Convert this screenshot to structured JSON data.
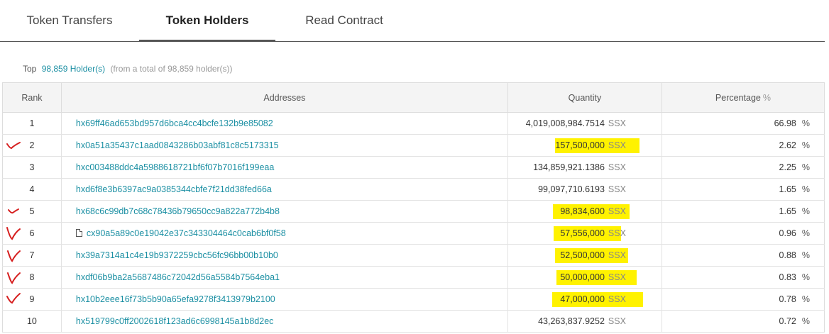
{
  "tabs": [
    {
      "label": "Token Transfers"
    },
    {
      "label": "Token Holders"
    },
    {
      "label": "Read Contract"
    }
  ],
  "summary": {
    "prefix": "Top",
    "count": "98,859 Holder(s)",
    "note": "(from a total of 98,859 holder(s))"
  },
  "table": {
    "headers": {
      "rank": "Rank",
      "addresses": "Addresses",
      "quantity": "Quantity",
      "percentage": "Percentage",
      "percentage_unit": "%"
    },
    "rows": [
      {
        "rank": "1",
        "address": "hx69ff46ad653bd957d6bca4cc4bcfe132b9e85082",
        "quantity": "4,019,008,984.7514",
        "symbol": "SSX",
        "percentage": "66.98",
        "pct_sym": "%"
      },
      {
        "rank": "2",
        "address": "hx0a51a35437c1aad0843286b03abf81c8c5173315",
        "quantity": "157,500,000",
        "symbol": "SSX",
        "percentage": "2.62",
        "pct_sym": "%"
      },
      {
        "rank": "3",
        "address": "hxc003488ddc4a5988618721bf6f07b7016f199eaa",
        "quantity": "134,859,921.1386",
        "symbol": "SSX",
        "percentage": "2.25",
        "pct_sym": "%"
      },
      {
        "rank": "4",
        "address": "hxd6f8e3b6397ac9a0385344cbfe7f21dd38fed66a",
        "quantity": "99,097,710.6193",
        "symbol": "SSX",
        "percentage": "1.65",
        "pct_sym": "%"
      },
      {
        "rank": "5",
        "address": "hx68c6c99db7c68c78436b79650cc9a822a772b4b8",
        "quantity": "98,834,600",
        "symbol": "SSX",
        "percentage": "1.65",
        "pct_sym": "%"
      },
      {
        "rank": "6",
        "address": "cx90a5a89c0e19042e37c343304464c0cab6bf0f58",
        "quantity": "57,556,000",
        "symbol": "SSX",
        "percentage": "0.96",
        "pct_sym": "%"
      },
      {
        "rank": "7",
        "address": "hx39a7314a1c4e19b9372259cbc56fc96bb00b10b0",
        "quantity": "52,500,000",
        "symbol": "SSX",
        "percentage": "0.88",
        "pct_sym": "%"
      },
      {
        "rank": "8",
        "address": "hxdf06b9ba2a5687486c72042d56a5584b7564eba1",
        "quantity": "50,000,000",
        "symbol": "SSX",
        "percentage": "0.83",
        "pct_sym": "%"
      },
      {
        "rank": "9",
        "address": "hx10b2eee16f73b5b90a65efa9278f3413979b2100",
        "quantity": "47,000,000",
        "symbol": "SSX",
        "percentage": "0.78",
        "pct_sym": "%"
      },
      {
        "rank": "10",
        "address": "hx519799c0ff2002618f123ad6c6998145a1b8d2ec",
        "quantity": "43,263,837.9252",
        "symbol": "SSX",
        "percentage": "0.72",
        "pct_sym": "%"
      }
    ]
  },
  "colors": {
    "link": "#1b8fa3",
    "highlight": "#fff200",
    "check_mark": "#d61f1f"
  },
  "icons": {
    "contract_row_icon": "document-icon",
    "annotation": "red-check-icon"
  }
}
